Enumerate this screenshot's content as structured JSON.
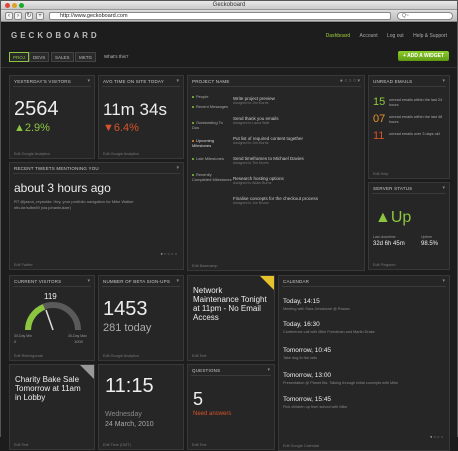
{
  "browser": {
    "title": "Geckoboard",
    "url": "http://www.geckoboard.com",
    "search_placeholder": "Q~"
  },
  "app": {
    "logo": "GECKOBOARD",
    "nav": [
      "Dashboard",
      "Account",
      "Log out",
      "Help & Support"
    ],
    "dashboards": [
      "PROJ",
      "DEVS",
      "SALES",
      "MKTG",
      "What's this?"
    ],
    "add_widget": "+ ADD A WIDGET"
  },
  "widgets": {
    "visitors": {
      "title": "YESTERDAY'S VISITORS",
      "value": "2564",
      "change": "▲2.9%",
      "footer": "Edit    Google Analytics"
    },
    "avg_time": {
      "title": "AVG TIME ON SITE TODAY",
      "value": "11m 34s",
      "change": "▼6.4%",
      "footer": "Edit    Google Analytics"
    },
    "project": {
      "title": "PROJECT NAME",
      "sidebar": [
        "People",
        "Recent Messages",
        "Outstanding To Dos",
        "Upcoming Milestones",
        "Late Milestones",
        "Recently Completed Milestones"
      ],
      "rows": [
        {
          "title": "Write project preview",
          "sub": "Assigned to Jim Morris"
        },
        {
          "title": "Send thank you emails",
          "sub": "Assigned to Laura Watt"
        },
        {
          "title": "Put list of required content together",
          "sub": "Assigned to Jim Morris"
        },
        {
          "title": "Send timeframes to Michael Davies",
          "sub": "Assigned to Tim Morris"
        },
        {
          "title": "Research hosting options",
          "sub": "Assigned to Adam Burns"
        },
        {
          "title": "Finalise concepts for the checkout process",
          "sub": "Assigned to Joe Brown"
        }
      ],
      "footer": "Edit    Basecamp"
    },
    "unread": {
      "title": "UNREAD EMAILS",
      "items": [
        {
          "value": "15",
          "text": "unread emails within the last 24 hours"
        },
        {
          "value": "07",
          "text": "unread emails within the last 48 hours"
        },
        {
          "value": "11",
          "text": "unread emails over 3 days old"
        }
      ],
      "footer": "Edit    Help"
    },
    "tweets": {
      "title": "RECENT TWEETS MENTIONING YOU",
      "headline": "about 3 hours ago",
      "line1": "RT @jason_reynolds: Hey, your portfolio navigation for Mike Walker",
      "line2": "ntlv.de/sdbn89 (via johanbukarr)",
      "footer": "Edit    Twitter"
    },
    "server": {
      "title": "SERVER STATUS",
      "status": "▲Up",
      "last_down_label": "Last downtime",
      "last_down": "32d 6h 45m",
      "uptime_label": "Uptime",
      "uptime": "98.5%",
      "footer": "Edit    Pingdom"
    },
    "current": {
      "title": "CURRENT VISITORS",
      "value": "119",
      "min_label": "30-Day Min",
      "min": "0",
      "max_label": "30-Day Max",
      "max": "1000",
      "footer": "Edit    Reinvigorate"
    },
    "signups": {
      "title": "NUMBER OF BETA SIGN-UPS",
      "value": "1453",
      "today": "281 today",
      "footer": "Edit    Google Analytics"
    },
    "maintenance": {
      "text": "Network Maintenance Tonight at 11pm - No Email Access",
      "footer": "Edit    Text"
    },
    "calendar": {
      "title": "CALENDAR",
      "events": [
        {
          "when": "Today, 14:15",
          "what": "Meeting with Sara Johnstone @ Rowan"
        },
        {
          "when": "Today, 16:30",
          "what": "Conference call with Mike Freedman and Martin Drake"
        },
        {
          "when": "Tomorrow, 10:45",
          "what": "Take dog to the vets"
        },
        {
          "when": "Tomorrow, 13:00",
          "what": "Presentation @ Planet Biz. Talking through initial concepts with Mike"
        },
        {
          "when": "Tomorrow, 15:45",
          "what": "Pick children up from school with Mike"
        }
      ],
      "footer": "Edit    Google Calendar"
    },
    "bake_sale": {
      "text": "Charity Bake Sale Tomorrow at 11am in Lobby",
      "footer": "Edit    Text"
    },
    "clock": {
      "time": "11:15",
      "day": "Wednesday",
      "date": "24 March, 2010",
      "footer": "Edit    Time (GMT)"
    },
    "questions": {
      "title": "QUESTIONS",
      "value": "5",
      "label": "Need answers",
      "footer": "Edit    Text"
    }
  },
  "colors": {
    "accent_green": "#8cc63f",
    "accent_red": "#d7542a",
    "accent_orange": "#e5932c",
    "note_yellow": "#e6c32c"
  }
}
